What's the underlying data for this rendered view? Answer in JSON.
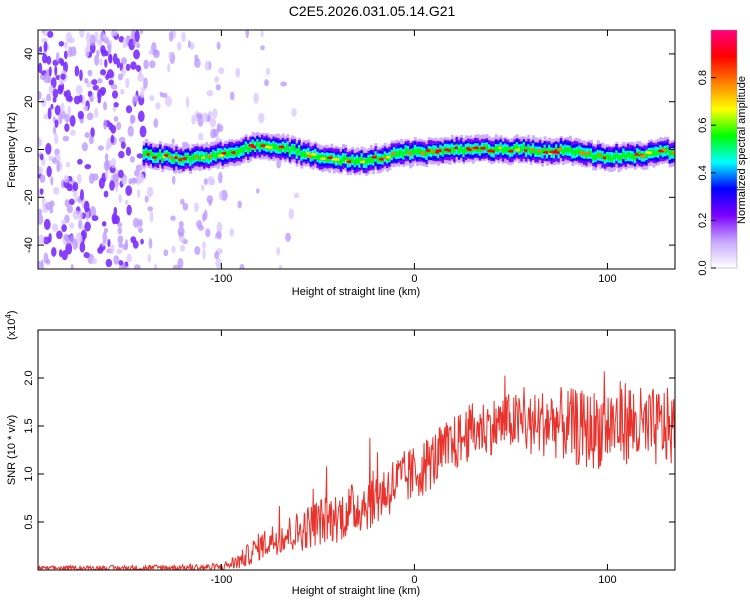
{
  "title": "C2E5.2026.031.05.14.G21",
  "chart_data": [
    {
      "type": "heatmap",
      "xlabel": "Height of straight line (km)",
      "ylabel": "Frequency (Hz)",
      "xlim": [
        -195,
        135
      ],
      "ylim": [
        -50,
        50
      ],
      "xticks": [
        -100,
        0,
        100
      ],
      "yticks": [
        -40,
        -20,
        0,
        20,
        40
      ],
      "colorbar": {
        "label": "Normalized spectral amplitude",
        "range": [
          0,
          1
        ],
        "ticks": [
          "0.0",
          "0.2",
          "0.4",
          "0.6",
          "0.8"
        ],
        "colors": [
          "#ffffff",
          "#c8a8ff",
          "#7a00ff",
          "#0000ff",
          "#00ffff",
          "#00ff00",
          "#ffff00",
          "#ff7f00",
          "#ff0000",
          "#ff0080"
        ]
      },
      "ridge": {
        "x": [
          -140,
          -130,
          -120,
          -110,
          -100,
          -90,
          -80,
          -70,
          -60,
          -50,
          -40,
          -30,
          -20,
          -10,
          0,
          10,
          20,
          30,
          40,
          50,
          60,
          70,
          80,
          90,
          100,
          110,
          120,
          130,
          135
        ],
        "y": [
          -2,
          -3,
          -4,
          -3,
          -2,
          0,
          2,
          1,
          -1,
          -3,
          -4,
          -5,
          -4,
          -2,
          -1,
          -1,
          0,
          0,
          0,
          0,
          0,
          -1,
          0,
          -2,
          -3,
          -3,
          -2,
          -1,
          -2
        ]
      },
      "noise_region": [
        -195,
        -100
      ]
    },
    {
      "type": "line",
      "xlabel": "Height of straight line (km)",
      "ylabel": "SNR (10 * v/v)",
      "yscale_label": "(x10",
      "yscale_exp": "4",
      "xlim": [
        -195,
        135
      ],
      "ylim": [
        0,
        2.5
      ],
      "xticks": [
        -100,
        0,
        100
      ],
      "yticks": [
        "0.5",
        "1.0",
        "1.5",
        "2.0"
      ],
      "color": "#e8322c",
      "envelope": {
        "x": [
          -195,
          -150,
          -100,
          -90,
          -80,
          -70,
          -60,
          -50,
          -40,
          -30,
          -20,
          -10,
          0,
          10,
          20,
          30,
          40,
          50,
          60,
          70,
          80,
          90,
          100,
          110,
          120,
          130,
          135
        ],
        "y": [
          0.02,
          0.02,
          0.03,
          0.1,
          0.25,
          0.35,
          0.4,
          0.5,
          0.55,
          0.65,
          0.75,
          0.9,
          1.0,
          1.15,
          1.3,
          1.45,
          1.5,
          1.55,
          1.5,
          1.55,
          1.5,
          1.45,
          1.5,
          1.55,
          1.45,
          1.5,
          1.45
        ]
      },
      "spread": {
        "x": [
          -195,
          -100,
          -80,
          -50,
          -20,
          0,
          20,
          50,
          80,
          110,
          135
        ],
        "y": [
          0.02,
          0.04,
          0.15,
          0.25,
          0.3,
          0.3,
          0.3,
          0.3,
          0.4,
          0.45,
          0.4
        ]
      }
    }
  ]
}
